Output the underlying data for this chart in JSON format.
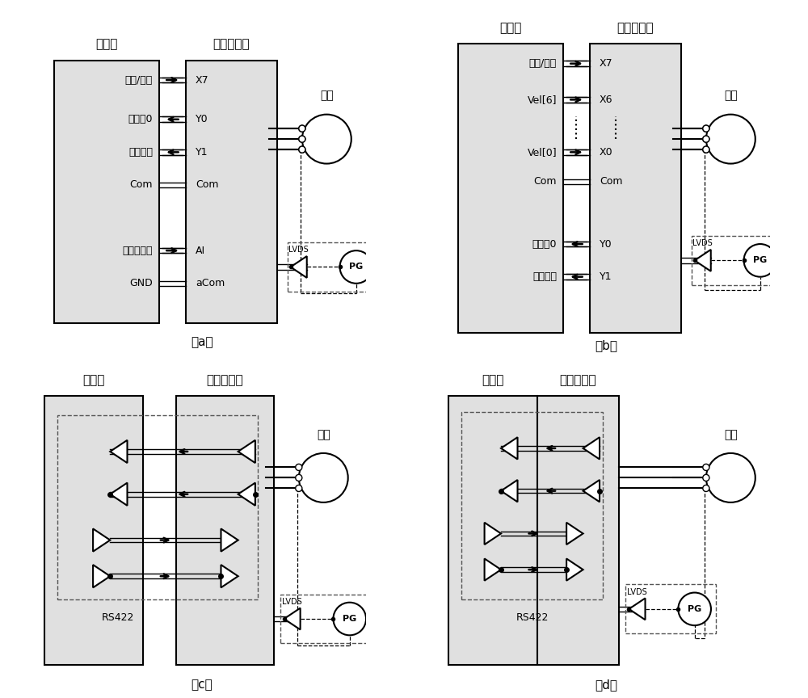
{
  "bg_color": "#ffffff",
  "box_fill": "#e0e0e0",
  "panel_a": {
    "left_label": "上位机",
    "right_label": "高频驱动器",
    "motor_label": "电机",
    "left_signals": [
      "启动/停止",
      "转速丸0",
      "转速达到",
      "Com",
      "模拟量输出",
      "GND"
    ],
    "right_signals": [
      "X7",
      "Y0",
      "Y1",
      "Com",
      "AI",
      "aCom"
    ],
    "arrows": [
      "right",
      "left",
      "left",
      "none",
      "right",
      "none"
    ],
    "caption": "（a）"
  },
  "panel_b": {
    "left_label": "上位机",
    "right_label": "高频驱动器",
    "motor_label": "电机",
    "left_signals": [
      "启动/停止",
      "Vel[6]",
      "Vel[0]",
      "Com",
      "转速丸0",
      "转速达到"
    ],
    "right_signals": [
      "X7",
      "X6",
      "X0",
      "Com",
      "Y0",
      "Y1"
    ],
    "arrows": [
      "right",
      "right",
      "right",
      "none",
      "left",
      "left"
    ],
    "caption": "（b）"
  },
  "panel_c": {
    "left_label": "上位机",
    "right_label": "高频驱动器",
    "motor_label": "电机",
    "rs422_label": "RS422",
    "caption": "（c）"
  },
  "panel_d": {
    "left_label": "上位机",
    "right_label": "高频驱动器",
    "motor_label": "电机",
    "rs422_label": "RS422",
    "caption": "（d）"
  }
}
